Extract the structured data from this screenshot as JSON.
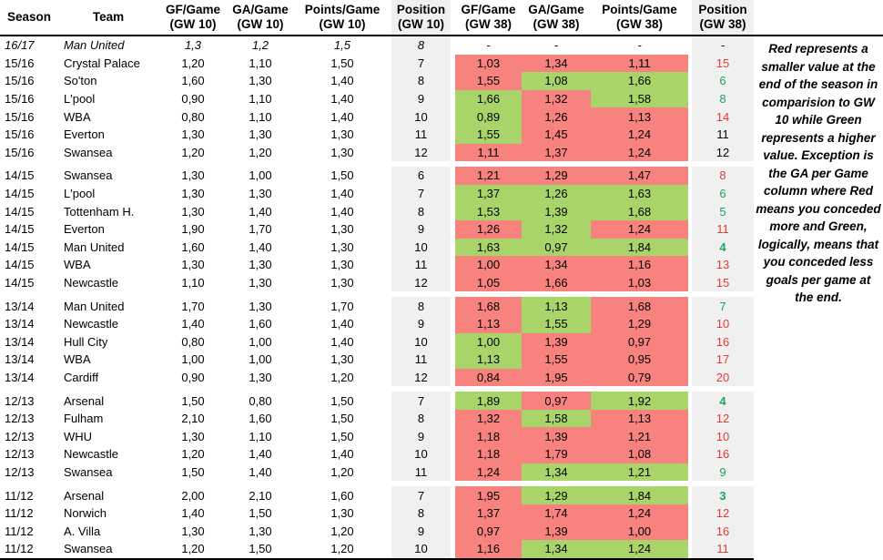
{
  "colors": {
    "red_fill": "#f8827d",
    "green_fill": "#a8d46a",
    "gray_column": "#f0f0f0",
    "position_red_text": "#e23b33",
    "position_green_text": "#1ea45f",
    "position_black_text": "#000000"
  },
  "note": {
    "text": "Red represents a smaller value at the end of the season in comparision to GW 10 while Green represents a higher value. Exception is the GA per Game column where Red means you conceded more and Green, logically, means that you conceded less goals per game at the end."
  },
  "chart_data": {
    "type": "table",
    "columns": [
      {
        "line1": "Season",
        "line2": "",
        "gray": false
      },
      {
        "line1": "Team",
        "line2": "",
        "gray": false
      },
      {
        "line1": "GF/Game",
        "line2": "(GW 10)",
        "gray": false
      },
      {
        "line1": "GA/Game",
        "line2": "(GW 10)",
        "gray": false
      },
      {
        "line1": "Points/Game",
        "line2": "(GW 10)",
        "gray": false
      },
      {
        "line1": "Position",
        "line2": "(GW 10)",
        "gray": true
      },
      {
        "line1": "GF/Game",
        "line2": "(GW 38)",
        "gray": false
      },
      {
        "line1": "GA/Game",
        "line2": "(GW 38)",
        "gray": false
      },
      {
        "line1": "Points/Game",
        "line2": "(GW 38)",
        "gray": true
      },
      {
        "line1": "Position",
        "line2": "(GW 38)",
        "gray": true
      }
    ],
    "fill_legend": {
      "r": "smaller/worse vs GW 10 (red)",
      "g": "better vs GW 10 (green)"
    },
    "groups": [
      {
        "gap_before": false,
        "rows": [
          {
            "season": "16/17",
            "team": "Man United",
            "italic": true,
            "gw10": [
              "1,3",
              "1,2",
              "1,5",
              "8"
            ],
            "gw38": [
              "-",
              "-",
              "-"
            ],
            "fills": [
              null,
              null,
              null
            ],
            "pos38": "-",
            "pos38_color": "black",
            "pos38_bold": false
          }
        ]
      },
      {
        "gap_before": false,
        "rows": [
          {
            "season": "15/16",
            "team": "Crystal Palace",
            "italic": false,
            "gw10": [
              "1,20",
              "1,10",
              "1,50",
              "7"
            ],
            "gw38": [
              "1,03",
              "1,34",
              "1,11"
            ],
            "fills": [
              "r",
              "r",
              "r"
            ],
            "pos38": "15",
            "pos38_color": "red",
            "pos38_bold": false
          },
          {
            "season": "15/16",
            "team": "So'ton",
            "italic": false,
            "gw10": [
              "1,60",
              "1,30",
              "1,40",
              "8"
            ],
            "gw38": [
              "1,55",
              "1,08",
              "1,66"
            ],
            "fills": [
              "r",
              "g",
              "g"
            ],
            "pos38": "6",
            "pos38_color": "green",
            "pos38_bold": false
          },
          {
            "season": "15/16",
            "team": "L'pool",
            "italic": false,
            "gw10": [
              "0,90",
              "1,10",
              "1,40",
              "9"
            ],
            "gw38": [
              "1,66",
              "1,32",
              "1,58"
            ],
            "fills": [
              "g",
              "r",
              "g"
            ],
            "pos38": "8",
            "pos38_color": "green",
            "pos38_bold": false
          },
          {
            "season": "15/16",
            "team": "WBA",
            "italic": false,
            "gw10": [
              "0,80",
              "1,10",
              "1,40",
              "10"
            ],
            "gw38": [
              "0,89",
              "1,26",
              "1,13"
            ],
            "fills": [
              "g",
              "r",
              "r"
            ],
            "pos38": "14",
            "pos38_color": "red",
            "pos38_bold": false
          },
          {
            "season": "15/16",
            "team": "Everton",
            "italic": false,
            "gw10": [
              "1,30",
              "1,30",
              "1,30",
              "11"
            ],
            "gw38": [
              "1,55",
              "1,45",
              "1,24"
            ],
            "fills": [
              "g",
              "r",
              "r"
            ],
            "pos38": "11",
            "pos38_color": "black",
            "pos38_bold": false
          },
          {
            "season": "15/16",
            "team": "Swansea",
            "italic": false,
            "gw10": [
              "1,20",
              "1,20",
              "1,30",
              "12"
            ],
            "gw38": [
              "1,11",
              "1,37",
              "1,24"
            ],
            "fills": [
              "r",
              "r",
              "r"
            ],
            "pos38": "12",
            "pos38_color": "black",
            "pos38_bold": false
          }
        ]
      },
      {
        "gap_before": true,
        "rows": [
          {
            "season": "14/15",
            "team": "Swansea",
            "italic": false,
            "gw10": [
              "1,30",
              "1,00",
              "1,50",
              "6"
            ],
            "gw38": [
              "1,21",
              "1,29",
              "1,47"
            ],
            "fills": [
              "r",
              "r",
              "r"
            ],
            "pos38": "8",
            "pos38_color": "red",
            "pos38_bold": false
          },
          {
            "season": "14/15",
            "team": "L'pool",
            "italic": false,
            "gw10": [
              "1,30",
              "1,30",
              "1,40",
              "7"
            ],
            "gw38": [
              "1,37",
              "1,26",
              "1,63"
            ],
            "fills": [
              "g",
              "g",
              "g"
            ],
            "pos38": "6",
            "pos38_color": "green",
            "pos38_bold": false
          },
          {
            "season": "14/15",
            "team": "Tottenham H.",
            "italic": false,
            "gw10": [
              "1,30",
              "1,40",
              "1,40",
              "8"
            ],
            "gw38": [
              "1,53",
              "1,39",
              "1,68"
            ],
            "fills": [
              "g",
              "g",
              "g"
            ],
            "pos38": "5",
            "pos38_color": "green",
            "pos38_bold": false
          },
          {
            "season": "14/15",
            "team": "Everton",
            "italic": false,
            "gw10": [
              "1,90",
              "1,70",
              "1,30",
              "9"
            ],
            "gw38": [
              "1,26",
              "1,32",
              "1,24"
            ],
            "fills": [
              "r",
              "g",
              "r"
            ],
            "pos38": "11",
            "pos38_color": "red",
            "pos38_bold": false
          },
          {
            "season": "14/15",
            "team": "Man United",
            "italic": false,
            "gw10": [
              "1,60",
              "1,40",
              "1,30",
              "10"
            ],
            "gw38": [
              "1,63",
              "0,97",
              "1,84"
            ],
            "fills": [
              "g",
              "g",
              "g"
            ],
            "pos38": "4",
            "pos38_color": "green",
            "pos38_bold": true
          },
          {
            "season": "14/15",
            "team": "WBA",
            "italic": false,
            "gw10": [
              "1,30",
              "1,30",
              "1,30",
              "11"
            ],
            "gw38": [
              "1,00",
              "1,34",
              "1,16"
            ],
            "fills": [
              "r",
              "r",
              "r"
            ],
            "pos38": "13",
            "pos38_color": "red",
            "pos38_bold": false
          },
          {
            "season": "14/15",
            "team": "Newcastle",
            "italic": false,
            "gw10": [
              "1,10",
              "1,30",
              "1,30",
              "12"
            ],
            "gw38": [
              "1,05",
              "1,66",
              "1,03"
            ],
            "fills": [
              "r",
              "r",
              "r"
            ],
            "pos38": "15",
            "pos38_color": "red",
            "pos38_bold": false
          }
        ]
      },
      {
        "gap_before": true,
        "rows": [
          {
            "season": "13/14",
            "team": "Man United",
            "italic": false,
            "gw10": [
              "1,70",
              "1,30",
              "1,70",
              "8"
            ],
            "gw38": [
              "1,68",
              "1,13",
              "1,68"
            ],
            "fills": [
              "r",
              "g",
              "r"
            ],
            "pos38": "7",
            "pos38_color": "green",
            "pos38_bold": false
          },
          {
            "season": "13/14",
            "team": "Newcastle",
            "italic": false,
            "gw10": [
              "1,40",
              "1,60",
              "1,40",
              "9"
            ],
            "gw38": [
              "1,13",
              "1,55",
              "1,29"
            ],
            "fills": [
              "r",
              "g",
              "r"
            ],
            "pos38": "10",
            "pos38_color": "red",
            "pos38_bold": false
          },
          {
            "season": "13/14",
            "team": "Hull City",
            "italic": false,
            "gw10": [
              "0,80",
              "1,00",
              "1,40",
              "10"
            ],
            "gw38": [
              "1,00",
              "1,39",
              "0,97"
            ],
            "fills": [
              "g",
              "r",
              "r"
            ],
            "pos38": "16",
            "pos38_color": "red",
            "pos38_bold": false
          },
          {
            "season": "13/14",
            "team": "WBA",
            "italic": false,
            "gw10": [
              "1,00",
              "1,00",
              "1,30",
              "11"
            ],
            "gw38": [
              "1,13",
              "1,55",
              "0,95"
            ],
            "fills": [
              "g",
              "r",
              "r"
            ],
            "pos38": "17",
            "pos38_color": "red",
            "pos38_bold": false
          },
          {
            "season": "13/14",
            "team": "Cardiff",
            "italic": false,
            "gw10": [
              "0,90",
              "1,30",
              "1,20",
              "12"
            ],
            "gw38": [
              "0,84",
              "1,95",
              "0,79"
            ],
            "fills": [
              "r",
              "r",
              "r"
            ],
            "pos38": "20",
            "pos38_color": "red",
            "pos38_bold": false
          }
        ]
      },
      {
        "gap_before": true,
        "rows": [
          {
            "season": "12/13",
            "team": "Arsenal",
            "italic": false,
            "gw10": [
              "1,50",
              "0,80",
              "1,50",
              "7"
            ],
            "gw38": [
              "1,89",
              "0,97",
              "1,92"
            ],
            "fills": [
              "g",
              "r",
              "g"
            ],
            "pos38": "4",
            "pos38_color": "green",
            "pos38_bold": true
          },
          {
            "season": "12/13",
            "team": "Fulham",
            "italic": false,
            "gw10": [
              "2,10",
              "1,60",
              "1,50",
              "8"
            ],
            "gw38": [
              "1,32",
              "1,58",
              "1,13"
            ],
            "fills": [
              "r",
              "g",
              "r"
            ],
            "pos38": "12",
            "pos38_color": "red",
            "pos38_bold": false
          },
          {
            "season": "12/13",
            "team": "WHU",
            "italic": false,
            "gw10": [
              "1,30",
              "1,10",
              "1,50",
              "9"
            ],
            "gw38": [
              "1,18",
              "1,39",
              "1,21"
            ],
            "fills": [
              "r",
              "r",
              "r"
            ],
            "pos38": "10",
            "pos38_color": "red",
            "pos38_bold": false
          },
          {
            "season": "12/13",
            "team": "Newcastle",
            "italic": false,
            "gw10": [
              "1,20",
              "1,40",
              "1,40",
              "10"
            ],
            "gw38": [
              "1,18",
              "1,79",
              "1,08"
            ],
            "fills": [
              "r",
              "r",
              "r"
            ],
            "pos38": "16",
            "pos38_color": "red",
            "pos38_bold": false
          },
          {
            "season": "12/13",
            "team": "Swansea",
            "italic": false,
            "gw10": [
              "1,50",
              "1,40",
              "1,20",
              "11"
            ],
            "gw38": [
              "1,24",
              "1,34",
              "1,21"
            ],
            "fills": [
              "r",
              "g",
              "g"
            ],
            "pos38": "9",
            "pos38_color": "green",
            "pos38_bold": false
          }
        ]
      },
      {
        "gap_before": true,
        "rows": [
          {
            "season": "11/12",
            "team": "Arsenal",
            "italic": false,
            "gw10": [
              "2,00",
              "2,10",
              "1,60",
              "7"
            ],
            "gw38": [
              "1,95",
              "1,29",
              "1,84"
            ],
            "fills": [
              "r",
              "g",
              "g"
            ],
            "pos38": "3",
            "pos38_color": "green",
            "pos38_bold": true
          },
          {
            "season": "11/12",
            "team": "Norwich",
            "italic": false,
            "gw10": [
              "1,40",
              "1,50",
              "1,30",
              "8"
            ],
            "gw38": [
              "1,37",
              "1,74",
              "1,24"
            ],
            "fills": [
              "r",
              "r",
              "r"
            ],
            "pos38": "12",
            "pos38_color": "red",
            "pos38_bold": false
          },
          {
            "season": "11/12",
            "team": "A. Villa",
            "italic": false,
            "gw10": [
              "1,30",
              "1,30",
              "1,20",
              "9"
            ],
            "gw38": [
              "0,97",
              "1,39",
              "1,00"
            ],
            "fills": [
              "r",
              "r",
              "r"
            ],
            "pos38": "16",
            "pos38_color": "red",
            "pos38_bold": false
          },
          {
            "season": "11/12",
            "team": "Swansea",
            "italic": false,
            "gw10": [
              "1,20",
              "1,50",
              "1,20",
              "10"
            ],
            "gw38": [
              "1,16",
              "1,34",
              "1,24"
            ],
            "fills": [
              "r",
              "g",
              "g"
            ],
            "pos38": "11",
            "pos38_color": "red",
            "pos38_bold": false
          }
        ]
      }
    ]
  }
}
